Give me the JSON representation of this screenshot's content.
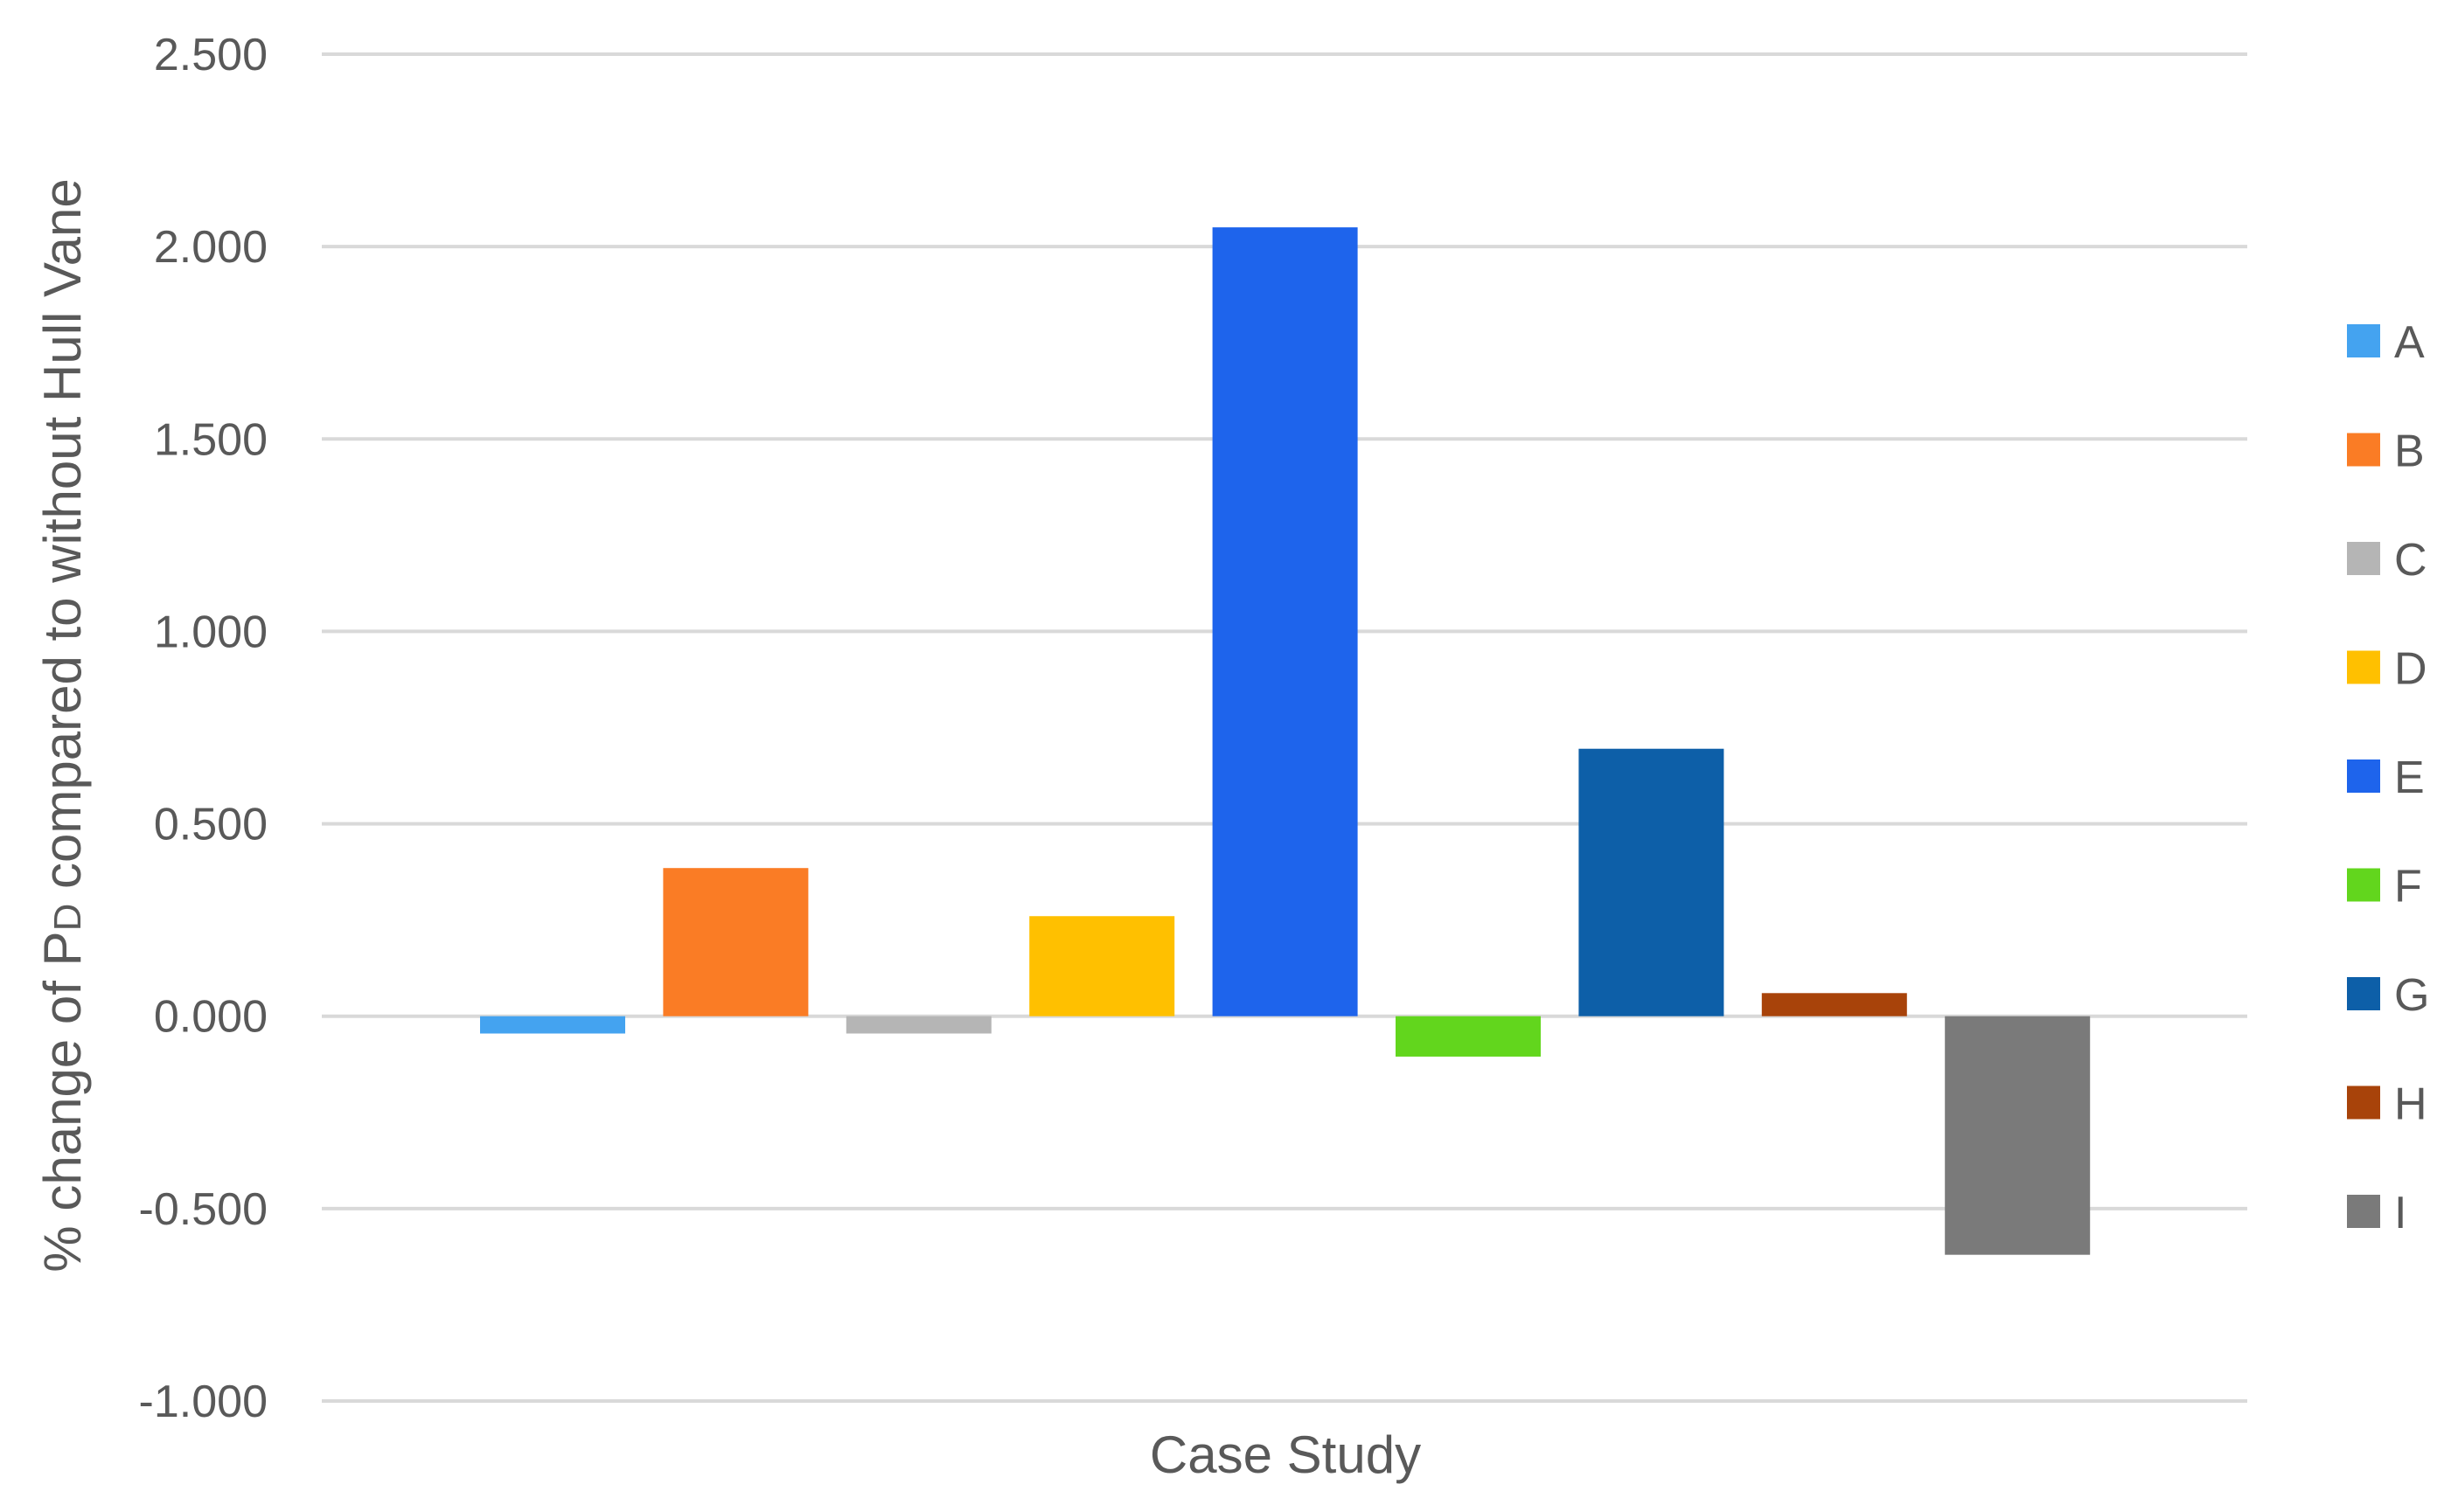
{
  "chart_data": {
    "type": "bar",
    "categories": [
      "Case Study"
    ],
    "series": [
      {
        "name": "A",
        "value": -0.045,
        "color": "#44a3f0"
      },
      {
        "name": "B",
        "value": 0.385,
        "color": "#fa7c25"
      },
      {
        "name": "C",
        "value": -0.045,
        "color": "#b5b5b5"
      },
      {
        "name": "D",
        "value": 0.26,
        "color": "#ffc000"
      },
      {
        "name": "E",
        "value": 2.05,
        "color": "#1e64ec"
      },
      {
        "name": "F",
        "value": -0.105,
        "color": "#62d61d"
      },
      {
        "name": "G",
        "value": 0.695,
        "color": "#0d5fa8"
      },
      {
        "name": "H",
        "value": 0.06,
        "color": "#a8430a"
      },
      {
        "name": "I",
        "value": -0.62,
        "color": "#7a7a7a"
      }
    ],
    "xlabel": "Case Study",
    "ylabel_prefix": "% change of P",
    "ylabel_subscript": "D",
    "ylabel_suffix": " compared to without Hull Vane",
    "ylim": [
      -1.0,
      2.5
    ],
    "yticks": [
      "-1.000",
      "-0.500",
      "0.000",
      "0.500",
      "1.000",
      "1.500",
      "2.000",
      "2.500"
    ],
    "ytick_values": [
      -1.0,
      -0.5,
      0.0,
      0.5,
      1.0,
      1.5,
      2.0,
      2.5
    ],
    "grid": true,
    "legend_position": "right"
  }
}
